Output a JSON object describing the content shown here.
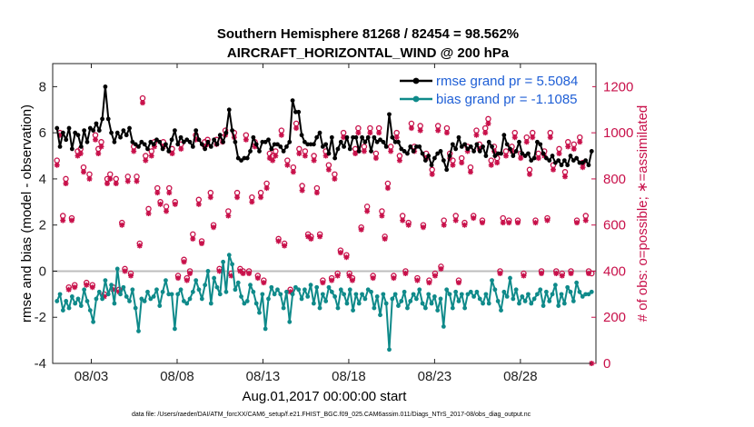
{
  "chart_data": {
    "type": "line",
    "title_line1": "Southern Hemisphere 81268 / 82454 = 98.562%",
    "title_line2": "AIRCRAFT_HORIZONTAL_WIND @ 200 hPa",
    "ylabel_left": "rmse and bias (model - observation)",
    "ylabel_right": "# of obs: o=possible; ∗=assimilated",
    "xlabel": "Aug.01,2017 00:00:00 start",
    "footnote": "data file: /Users/raeder/DAI/ATM_forcXX/CAM6_setup/f.e21.FHIST_BGC.f09_025.CAM6assim.011/Diags_NTrS_2017-08/obs_diag_output.nc",
    "xlim": [
      0.75,
      32.4
    ],
    "ylim_left": [
      -4,
      9
    ],
    "ylim_right": [
      0,
      1300
    ],
    "x_ticks": [
      3,
      8,
      13,
      18,
      23,
      28
    ],
    "x_tick_labels": [
      "08/03",
      "08/08",
      "08/13",
      "08/18",
      "08/23",
      "08/28"
    ],
    "y_ticks_left": [
      "-4",
      "-2",
      "0",
      "2",
      "4",
      "6",
      "8"
    ],
    "y_ticks_right": [
      "0",
      "200",
      "400",
      "600",
      "800",
      "1000",
      "1200"
    ],
    "zero_line": 0,
    "legend": [
      {
        "label": "rmse grand pr = 5.5084",
        "color": "#000000"
      },
      {
        "label": "bias grand pr = -1.1085",
        "color": "#0f8a8a"
      }
    ],
    "series": [
      {
        "name": "rmse",
        "color": "#000000",
        "values": [
          6.2,
          5.4,
          6.0,
          5.7,
          6.2,
          5.3,
          6.0,
          5.9,
          5.4,
          6.1,
          5.6,
          6.2,
          6.1,
          6.4,
          6.1,
          6.6,
          8.0,
          6.6,
          6.0,
          5.6,
          6.0,
          5.8,
          6.1,
          5.9,
          6.2,
          5.6,
          5.5,
          5.4,
          5.6,
          5.5,
          5.3,
          5.6,
          5.5,
          5.7,
          5.6,
          5.3,
          5.5,
          5.2,
          5.7,
          6.1,
          5.5,
          5.8,
          5.6,
          5.7,
          5.6,
          5.4,
          6.1,
          5.7,
          5.5,
          5.3,
          5.6,
          5.4,
          5.7,
          5.5,
          5.9,
          5.6,
          6.0,
          7.0,
          6.1,
          5.6,
          4.9,
          4.8,
          4.9,
          4.9,
          5.2,
          5.8,
          5.5,
          5.2,
          5.6,
          5.6,
          5.7,
          5.3,
          5.5,
          5.5,
          5.4,
          5.2,
          5.4,
          5.6,
          7.4,
          6.9,
          6.9,
          5.9,
          5.6,
          5.5,
          5.5,
          5.5,
          5.8,
          6.0,
          5.4,
          5.5,
          5.1,
          5.8,
          4.9,
          5.3,
          5.6,
          5.4,
          5.8,
          5.3,
          5.8,
          5.8,
          5.2,
          5.8,
          5.6,
          5.8,
          5.2,
          5.8,
          5.6,
          5.7,
          5.6,
          5.4,
          6.8,
          5.8,
          5.6,
          5.6,
          5.3,
          5.2,
          5.1,
          5.4,
          5.2,
          5.4,
          5.4,
          5.1,
          4.8,
          5.0,
          4.6,
          4.9,
          5.1,
          5.2,
          4.8,
          4.4,
          5.0,
          5.5,
          5.3,
          5.8,
          5.4,
          5.5,
          5.3,
          5.4,
          5.2,
          5.5,
          5.2,
          5.4,
          5.0,
          5.6,
          5.4,
          5.0,
          5.1,
          5.1,
          5.9,
          5.5,
          5.3,
          5.0,
          5.2,
          5.6,
          5.1,
          5.0,
          5.1,
          4.8,
          4.9,
          5.6,
          5.5,
          5.1,
          4.9,
          4.8,
          5.0,
          4.7,
          4.8,
          4.6,
          4.8,
          4.6,
          5.0,
          4.8,
          4.9,
          4.7,
          4.7,
          4.8,
          4.6,
          5.2
        ]
      },
      {
        "name": "bias",
        "color": "#0f8a8a",
        "values": [
          -1.3,
          -1.0,
          -1.7,
          -1.3,
          -1.6,
          -1.1,
          -1.4,
          -1.2,
          -1.5,
          -0.8,
          -1.3,
          -1.7,
          -2.2,
          -1.2,
          -0.9,
          -1.2,
          -0.4,
          -1.0,
          -0.6,
          -1.4,
          0.1,
          -1.0,
          -0.7,
          -1.1,
          -1.3,
          -0.8,
          -1.6,
          -2.6,
          -1.2,
          -1.3,
          -0.9,
          -1.2,
          -1.1,
          -0.8,
          -1.5,
          -0.9,
          -0.4,
          -1.0,
          -1.0,
          -2.5,
          -1.0,
          -0.8,
          -1.3,
          -1.4,
          -1.2,
          -0.9,
          -0.4,
          -0.8,
          -1.2,
          -0.6,
          0.0,
          -1.4,
          -0.3,
          -0.7,
          -1.0,
          0.4,
          -0.9,
          0.7,
          0.3,
          -0.8,
          -0.5,
          -1.1,
          -1.4,
          -1.3,
          -0.6,
          -0.9,
          -1.4,
          -1.8,
          -1.0,
          -2.5,
          -1.2,
          -0.7,
          -1.0,
          -0.8,
          -1.0,
          -1.6,
          -0.9,
          -2.2,
          -1.0,
          -0.7,
          -0.8,
          -1.2,
          -0.8,
          -1.1,
          -0.6,
          -1.4,
          -0.7,
          -1.6,
          -1.0,
          -1.3,
          -0.7,
          -0.9,
          -1.1,
          -1.6,
          -0.8,
          -1.0,
          -1.4,
          -0.8,
          -1.7,
          -1.0,
          -1.4,
          -1.0,
          -1.2,
          -0.8,
          -0.9,
          -1.6,
          -1.1,
          -1.9,
          -1.0,
          -1.4,
          -3.4,
          -1.2,
          -1.0,
          -1.5,
          -1.3,
          -0.9,
          -1.6,
          -1.3,
          -1.0,
          -1.2,
          -0.8,
          -1.4,
          -1.6,
          -1.0,
          -1.4,
          -1.1,
          -1.7,
          -1.2,
          -2.4,
          -0.8,
          -1.0,
          -1.6,
          -0.9,
          -1.3,
          -1.0,
          -1.6,
          -1.0,
          -0.9,
          -1.1,
          -0.9,
          -1.2,
          -1.4,
          -1.0,
          -1.4,
          -0.4,
          -0.8,
          -1.3,
          -1.7,
          -0.9,
          -1.1,
          -0.3,
          -1.2,
          -0.8,
          -1.4,
          -1.1,
          -1.3,
          -1.0,
          -1.4,
          -1.2,
          -1.0,
          -0.8,
          -1.5,
          -0.9,
          -1.3,
          -1.0,
          -0.6,
          -1.5,
          -1.0,
          -1.4,
          -0.7,
          -0.9,
          -1.3,
          -0.5,
          -0.9,
          -1.1,
          -1.0,
          -1.0,
          -0.9
        ]
      },
      {
        "name": "obs_possible",
        "color": "#c8104a",
        "values": [
          880,
          1000,
          640,
          800,
          330,
          630,
          340,
          920,
          930,
          850,
          350,
          820,
          340,
          990,
          930,
          960,
          300,
          800,
          820,
          330,
          800,
          320,
          610,
          410,
          810,
          390,
          940,
          810,
          520,
          1150,
          900,
          670,
          920,
          960,
          760,
          700,
          960,
          680,
          760,
          930,
          700,
          380,
          950,
          450,
          370,
          400,
          560,
          990,
          710,
          530,
          960,
          970,
          740,
          600,
          970,
          410,
          980,
          1010,
          660,
          390,
          1000,
          740,
          410,
          400,
          990,
          400,
          720,
          960,
          380,
          740,
          360,
          780,
          910,
          900,
          920,
          540,
          1010,
          520,
          880,
          320,
          850,
          1040,
          930,
          770,
          920,
          560,
          550,
          900,
          760,
          560,
          360,
          920,
          860,
          370,
          820,
          390,
          490,
          1000,
          470,
          390,
          370,
          930,
          1020,
          590,
          940,
          680,
          1020,
          380,
          910,
          1020,
          660,
          550,
          780,
          940,
          380,
          1000,
          900,
          640,
          400,
          610,
          1040,
          940,
          370,
          1030,
          600,
          910,
          360,
          840,
          390,
          1030,
          420,
          620,
          1020,
          910,
          880,
          640,
          360,
          890,
          610,
          940,
          850,
          640,
          1010,
          950,
          620,
          1020,
          1060,
          880,
          940,
          890,
          400,
          630,
          920,
          620,
          940,
          1000,
          620,
          910,
          390,
          980,
          840,
          1000,
          620,
          910,
          400,
          920,
          630,
          1000,
          860,
          400,
          930,
          390,
          830,
          960,
          400,
          950,
          620,
          980,
          870,
          640,
          400,
          390
        ]
      },
      {
        "name": "obs_assimilated",
        "color": "#c8104a",
        "values": [
          860,
          990,
          620,
          780,
          320,
          620,
          330,
          900,
          910,
          830,
          340,
          800,
          330,
          970,
          910,
          940,
          290,
          780,
          800,
          320,
          780,
          310,
          600,
          400,
          790,
          380,
          920,
          790,
          510,
          1130,
          880,
          650,
          900,
          940,
          740,
          690,
          940,
          660,
          740,
          910,
          690,
          370,
          930,
          440,
          360,
          390,
          540,
          970,
          690,
          520,
          940,
          950,
          720,
          590,
          950,
          400,
          960,
          990,
          640,
          380,
          980,
          720,
          400,
          390,
          970,
          390,
          700,
          940,
          370,
          720,
          350,
          760,
          890,
          880,
          900,
          530,
          990,
          510,
          860,
          310,
          830,
          1020,
          910,
          750,
          900,
          550,
          540,
          880,
          740,
          550,
          350,
          900,
          840,
          360,
          800,
          380,
          480,
          980,
          460,
          380,
          360,
          910,
          1000,
          580,
          920,
          660,
          1000,
          370,
          890,
          1000,
          640,
          540,
          760,
          920,
          370,
          980,
          880,
          620,
          390,
          600,
          1020,
          920,
          360,
          1010,
          590,
          890,
          350,
          820,
          380,
          1010,
          410,
          600,
          1000,
          890,
          860,
          620,
          350,
          870,
          600,
          920,
          830,
          630,
          990,
          930,
          610,
          1000,
          1040,
          860,
          920,
          870,
          390,
          610,
          900,
          610,
          920,
          980,
          610,
          890,
          380,
          960,
          820,
          980,
          610,
          890,
          390,
          900,
          620,
          980,
          840,
          390,
          910,
          380,
          810,
          940,
          390,
          930,
          610,
          960,
          850,
          620,
          390,
          0
        ]
      }
    ]
  }
}
